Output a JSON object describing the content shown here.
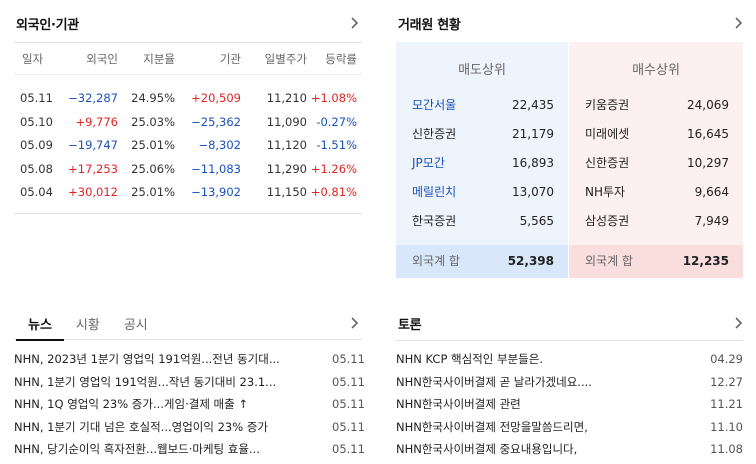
{
  "invest": {
    "title": "외국인·기관",
    "headers": {
      "date": "일자",
      "foreign": "외국인",
      "share": "지분율",
      "inst": "기관",
      "price": "일별주가",
      "rate": "등락률"
    },
    "rows": [
      {
        "date": "05.11",
        "foreign": "−32,287",
        "share": "24.95%",
        "inst": "+20,509",
        "price": "11,210",
        "rate": "+1.08%"
      },
      {
        "date": "05.10",
        "foreign": "+9,776",
        "share": "25.03%",
        "inst": "−25,362",
        "price": "11,090",
        "rate": "-0.27%"
      },
      {
        "date": "05.09",
        "foreign": "−19,747",
        "share": "25.01%",
        "inst": "−8,302",
        "price": "11,120",
        "rate": "-1.51%"
      },
      {
        "date": "05.08",
        "foreign": "+17,253",
        "share": "25.06%",
        "inst": "−11,083",
        "price": "11,290",
        "rate": "+1.26%"
      },
      {
        "date": "05.04",
        "foreign": "+30,012",
        "share": "25.01%",
        "inst": "−13,902",
        "price": "11,150",
        "rate": "+0.81%"
      }
    ]
  },
  "broker": {
    "title": "거래원 현황",
    "sell_header": "매도상위",
    "buy_header": "매수상위",
    "sell": [
      {
        "name": "모간서울",
        "value": "22,435"
      },
      {
        "name": "신한증권",
        "value": "21,179"
      },
      {
        "name": "JP모간",
        "value": "16,893"
      },
      {
        "name": "메릴린치",
        "value": "13,070"
      },
      {
        "name": "한국증권",
        "value": "5,565"
      }
    ],
    "buy": [
      {
        "name": "키움증권",
        "value": "24,069"
      },
      {
        "name": "미래에셋",
        "value": "16,645"
      },
      {
        "name": "신한증권",
        "value": "10,297"
      },
      {
        "name": "NH투자",
        "value": "9,664"
      },
      {
        "name": "삼성증권",
        "value": "7,949"
      }
    ],
    "sell_total_label": "외국계 합",
    "sell_total": "52,398",
    "buy_total_label": "외국계 합",
    "buy_total": "12,235"
  },
  "news": {
    "tabs": [
      "뉴스",
      "시황",
      "공시"
    ],
    "items": [
      {
        "title": "NHN, 2023년 1분기 영업익 191억원...전년 동기대...",
        "date": "05.11"
      },
      {
        "title": "NHN, 1분기 영업익 191억원...작년 동기대비 23.1...",
        "date": "05.11"
      },
      {
        "title": "NHN, 1Q 영업익 23% 증가...게임·결제 매출 ↑",
        "date": "05.11"
      },
      {
        "title": "NHN, 1분기 기대 넘은 호실적...영업이익 23% 증가",
        "date": "05.11"
      },
      {
        "title": "NHN, 당기순이익 흑자전환...웹보드·마케팅 효율...",
        "date": "05.11"
      }
    ]
  },
  "talk": {
    "title": "토론",
    "items": [
      {
        "title": "NHN KCP 핵심적인 부분들은.",
        "date": "04.29"
      },
      {
        "title": "NHN한국사이버결제 곧 날라가겠네요....",
        "date": "12.27"
      },
      {
        "title": "NHN한국사이버결제 관련",
        "date": "11.21"
      },
      {
        "title": "NHN한국사이버결제 전망을말씀드리면,",
        "date": "11.10"
      },
      {
        "title": "NHN한국사이버결제 중요내용입니다,",
        "date": "11.08"
      }
    ]
  },
  "colors": {
    "up": "#e02424",
    "down": "#1a4fbe",
    "sell_bg": "#eef4fc",
    "buy_bg": "#fcf0f0"
  },
  "icons": {
    "more": "chevron-right-icon"
  }
}
